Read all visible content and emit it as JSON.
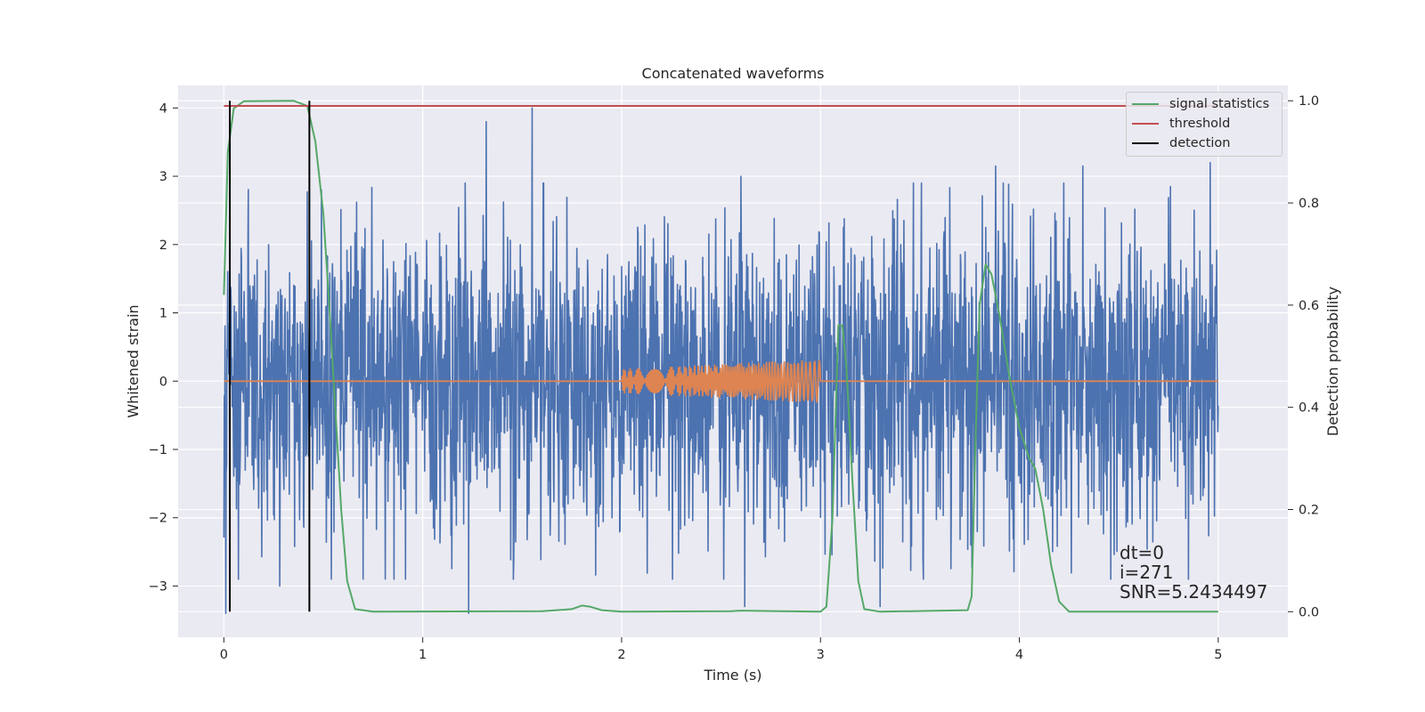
{
  "chart_data": {
    "type": "line",
    "title": "Concatenated waveforms",
    "xlabel": "Time (s)",
    "ylabel": "Whitened strain",
    "ylabel_right": "Detection probability",
    "xlim": [
      -0.23,
      5.35
    ],
    "ylim": [
      -3.75,
      4.33
    ],
    "ylim_right": [
      -0.05,
      1.03
    ],
    "x_ticks": [
      "0",
      "1",
      "2",
      "3",
      "4",
      "5"
    ],
    "y_ticks": [
      "4",
      "3",
      "2",
      "1",
      "0",
      "−1",
      "−2",
      "−3"
    ],
    "y_ticks_right": [
      "1.0",
      "0.8",
      "0.6",
      "0.4",
      "0.2",
      "0.0"
    ],
    "grid": true,
    "legend_position": "top-right",
    "series": [
      {
        "name": "",
        "axis": "left",
        "description_kind": "noisy strain",
        "x_range": [
          0,
          5
        ],
        "typical_amplitude": 1.2,
        "peaks": [
          {
            "x": 1.55,
            "y": 4.0
          },
          {
            "x": 1.32,
            "y": 3.8
          },
          {
            "x": 4.96,
            "y": 3.2
          },
          {
            "x": 3.88,
            "y": 3.15
          },
          {
            "x": 4.32,
            "y": 3.15
          },
          {
            "x": 2.6,
            "y": 3.0
          },
          {
            "x": 0.49,
            "y": 2.8
          },
          {
            "x": 1.23,
            "y": -3.4
          },
          {
            "x": 0.01,
            "y": -3.4
          },
          {
            "x": 2.62,
            "y": -3.3
          },
          {
            "x": 3.3,
            "y": -3.3
          },
          {
            "x": 0.28,
            "y": -3.0
          }
        ]
      },
      {
        "name": "",
        "axis": "left",
        "description_kind": "injected chirp",
        "x_range": [
          0,
          5
        ],
        "chirp_start": 2.0,
        "chirp_end": 3.0,
        "amplitude_start": 0.18,
        "amplitude_end": 0.32
      },
      {
        "name": "signal statistics",
        "axis": "right",
        "points": [
          [
            0.0,
            0.62
          ],
          [
            0.02,
            0.9
          ],
          [
            0.05,
            0.985
          ],
          [
            0.1,
            0.999
          ],
          [
            0.35,
            1.0
          ],
          [
            0.42,
            0.99
          ],
          [
            0.46,
            0.92
          ],
          [
            0.5,
            0.78
          ],
          [
            0.53,
            0.6
          ],
          [
            0.56,
            0.4
          ],
          [
            0.59,
            0.2
          ],
          [
            0.62,
            0.06
          ],
          [
            0.66,
            0.005
          ],
          [
            0.75,
            0.0
          ],
          [
            1.6,
            0.001
          ],
          [
            1.75,
            0.005
          ],
          [
            1.8,
            0.012
          ],
          [
            1.84,
            0.01
          ],
          [
            1.9,
            0.003
          ],
          [
            2.0,
            0.0
          ],
          [
            2.55,
            0.001
          ],
          [
            2.6,
            0.002
          ],
          [
            2.8,
            0.001
          ],
          [
            3.0,
            0.0
          ],
          [
            3.03,
            0.01
          ],
          [
            3.06,
            0.18
          ],
          [
            3.09,
            0.56
          ],
          [
            3.11,
            0.56
          ],
          [
            3.13,
            0.48
          ],
          [
            3.16,
            0.26
          ],
          [
            3.19,
            0.06
          ],
          [
            3.22,
            0.005
          ],
          [
            3.3,
            0.0
          ],
          [
            3.74,
            0.003
          ],
          [
            3.76,
            0.03
          ],
          [
            3.78,
            0.34
          ],
          [
            3.8,
            0.6
          ],
          [
            3.83,
            0.68
          ],
          [
            3.86,
            0.66
          ],
          [
            3.9,
            0.58
          ],
          [
            3.95,
            0.46
          ],
          [
            4.0,
            0.36
          ],
          [
            4.05,
            0.3
          ],
          [
            4.08,
            0.28
          ],
          [
            4.12,
            0.2
          ],
          [
            4.16,
            0.09
          ],
          [
            4.2,
            0.02
          ],
          [
            4.25,
            0.0
          ],
          [
            5.0,
            0.0
          ]
        ]
      },
      {
        "name": "threshold",
        "axis": "right",
        "value": 0.99,
        "x_range": [
          0,
          5
        ]
      },
      {
        "name": "detection",
        "axis": "right",
        "x_values": [
          0.03,
          0.43
        ],
        "y_range": [
          0.0,
          1.0
        ]
      }
    ],
    "annotation": {
      "dt": "dt=0",
      "i": "i=271",
      "snr": "SNR=5.2434497"
    }
  },
  "colors": {
    "strain": "#4c72b0",
    "chirp": "#dd8452",
    "signal_statistics": "#55a868",
    "threshold": "#c44e52",
    "detection": "#000000",
    "background": "#eaeaf2",
    "grid": "#ffffff"
  }
}
